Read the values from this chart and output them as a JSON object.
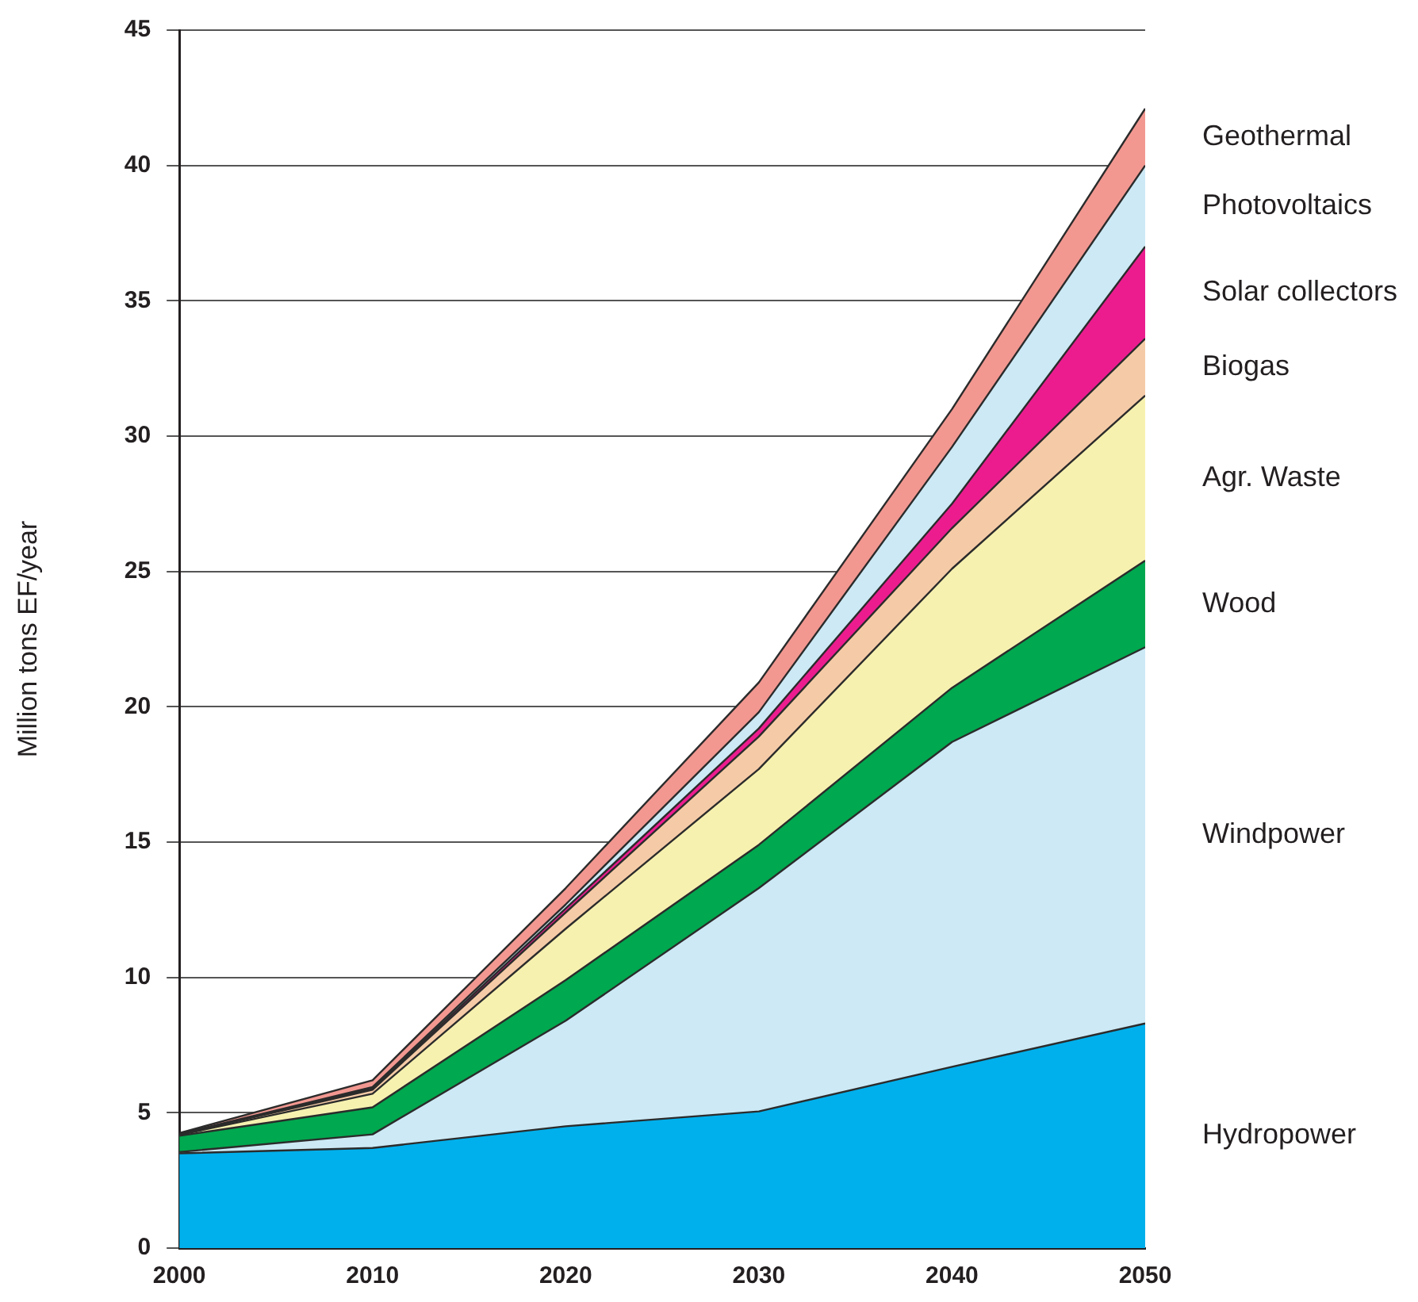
{
  "chart_data": {
    "type": "area",
    "stacked": true,
    "ylabel": "Million tons EF/year",
    "x": [
      2000,
      2010,
      2020,
      2030,
      2040,
      2050
    ],
    "xlim": [
      2000,
      2050
    ],
    "xticks": [
      2000,
      2010,
      2020,
      2030,
      2040,
      2050
    ],
    "ylim": [
      0,
      45
    ],
    "yticks": [
      0,
      5,
      10,
      15,
      20,
      25,
      30,
      35,
      40,
      45
    ],
    "grid": "y",
    "legend": "right",
    "series": [
      {
        "name": "Hydropower",
        "color": "#00b0ec",
        "values": [
          3.5,
          3.7,
          4.5,
          5.05,
          6.7,
          8.3
        ]
      },
      {
        "name": "Windpower",
        "color": "#cce9f5",
        "values": [
          0.05,
          0.5,
          3.9,
          8.25,
          12.0,
          13.9
        ]
      },
      {
        "name": "Wood",
        "color": "#00a84f",
        "values": [
          0.6,
          1.0,
          1.5,
          1.6,
          2.0,
          3.2
        ]
      },
      {
        "name": "Agr. Waste",
        "color": "#f7f1b0",
        "values": [
          0.03,
          0.5,
          1.9,
          2.8,
          4.4,
          6.1
        ]
      },
      {
        "name": "Biogas",
        "color": "#f5cba7",
        "values": [
          0.02,
          0.15,
          0.6,
          1.2,
          1.5,
          2.1
        ]
      },
      {
        "name": "Solar collectors",
        "color": "#ec1c8f",
        "values": [
          0.01,
          0.05,
          0.15,
          0.3,
          0.9,
          3.4
        ]
      },
      {
        "name": "Photovoltaics",
        "color": "#cce9f5",
        "values": [
          0.01,
          0.05,
          0.15,
          0.6,
          2.1,
          3.0
        ]
      },
      {
        "name": "Geothermal",
        "color": "#f29891",
        "values": [
          0.03,
          0.25,
          0.6,
          1.1,
          1.4,
          2.1
        ]
      }
    ]
  }
}
